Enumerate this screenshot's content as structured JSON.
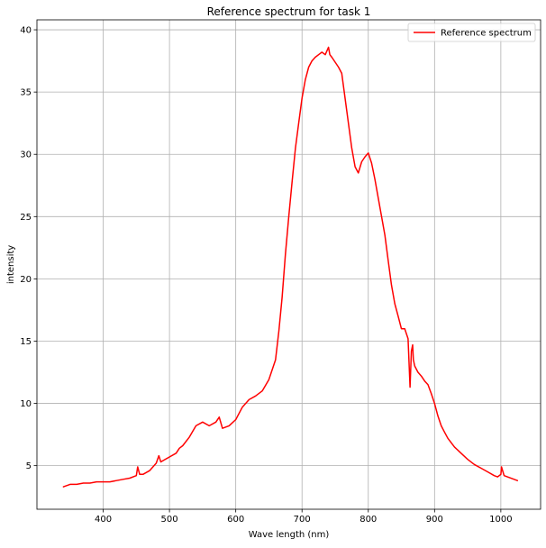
{
  "chart_data": {
    "type": "line",
    "title": "Reference spectrum for task 1",
    "xlabel": "Wave length (nm)",
    "ylabel": "intensity",
    "xlim": [
      300,
      1060
    ],
    "ylim": [
      1.5,
      40.8
    ],
    "xticks": [
      400,
      500,
      600,
      700,
      800,
      900,
      1000
    ],
    "yticks": [
      5,
      10,
      15,
      20,
      25,
      30,
      35,
      40
    ],
    "grid": true,
    "legend_position": "top-right",
    "series": [
      {
        "name": "Reference spectrum",
        "color": "#ff0000",
        "x": [
          340,
          350,
          360,
          370,
          380,
          390,
          400,
          410,
          420,
          430,
          440,
          450,
          452,
          455,
          460,
          470,
          480,
          484,
          487,
          490,
          500,
          510,
          515,
          520,
          530,
          540,
          550,
          560,
          570,
          575,
          580,
          590,
          600,
          610,
          620,
          630,
          640,
          650,
          660,
          665,
          670,
          675,
          680,
          685,
          690,
          695,
          700,
          705,
          710,
          715,
          720,
          725,
          730,
          735,
          740,
          742,
          745,
          750,
          755,
          760,
          765,
          770,
          775,
          780,
          785,
          790,
          795,
          800,
          805,
          810,
          815,
          820,
          825,
          830,
          835,
          840,
          845,
          850,
          855,
          860,
          863,
          865,
          867,
          868,
          870,
          875,
          880,
          885,
          890,
          895,
          900,
          905,
          910,
          915,
          920,
          930,
          940,
          950,
          960,
          970,
          980,
          990,
          995,
          1000,
          1001,
          1005,
          1010,
          1020,
          1025
        ],
        "y": [
          3.3,
          3.5,
          3.5,
          3.6,
          3.6,
          3.7,
          3.7,
          3.7,
          3.8,
          3.9,
          4.0,
          4.2,
          4.9,
          4.3,
          4.3,
          4.6,
          5.2,
          5.8,
          5.3,
          5.4,
          5.7,
          6.0,
          6.4,
          6.6,
          7.3,
          8.2,
          8.5,
          8.2,
          8.5,
          8.9,
          8.0,
          8.2,
          8.7,
          9.7,
          10.3,
          10.6,
          11.0,
          11.9,
          13.5,
          15.8,
          18.5,
          22.0,
          25.0,
          27.8,
          30.5,
          32.5,
          34.5,
          36.0,
          37.0,
          37.5,
          37.8,
          38.0,
          38.2,
          38.0,
          38.6,
          38.0,
          37.8,
          37.4,
          37.0,
          36.5,
          34.5,
          32.5,
          30.5,
          29.0,
          28.5,
          29.4,
          29.8,
          30.1,
          29.3,
          28.0,
          26.5,
          25.0,
          23.5,
          21.5,
          19.5,
          18.0,
          17.0,
          16.0,
          16.0,
          15.2,
          11.3,
          14.2,
          14.7,
          13.5,
          13.0,
          12.5,
          12.2,
          11.8,
          11.5,
          10.8,
          10.0,
          9.0,
          8.2,
          7.7,
          7.2,
          6.5,
          6.0,
          5.5,
          5.1,
          4.8,
          4.5,
          4.2,
          4.1,
          4.3,
          4.9,
          4.2,
          4.1,
          3.9,
          3.8
        ]
      }
    ]
  }
}
